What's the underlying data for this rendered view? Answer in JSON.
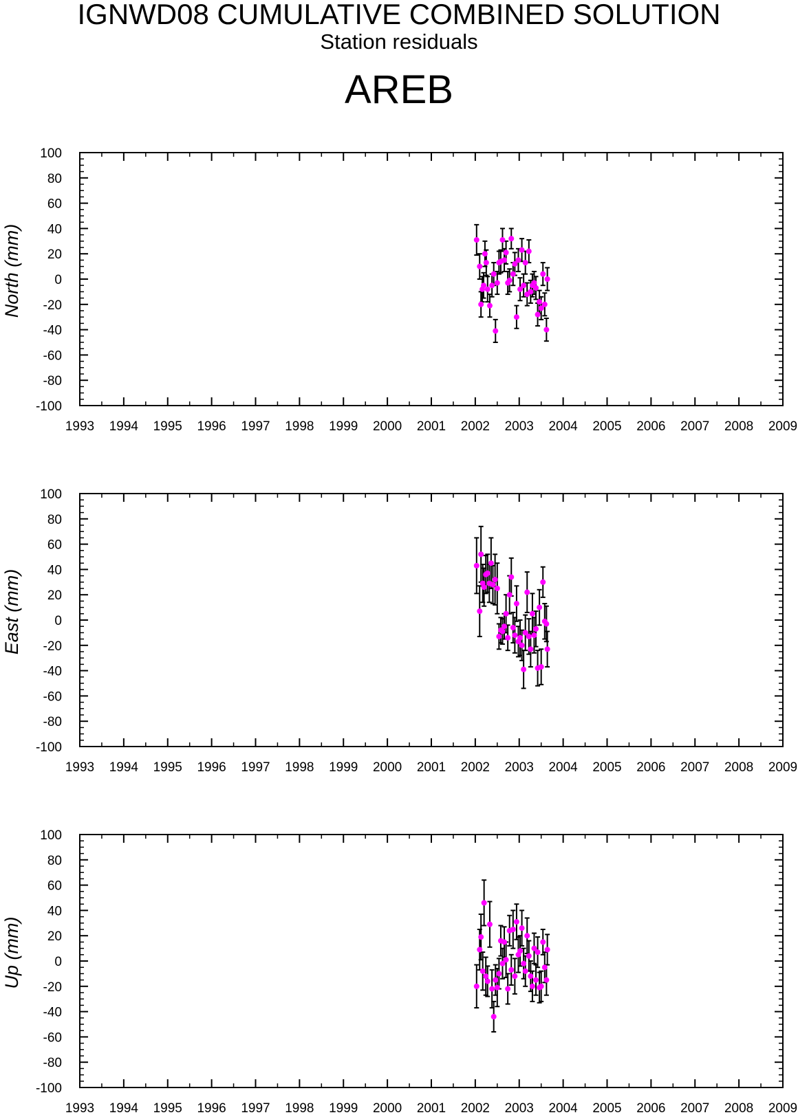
{
  "header": {
    "title": "IGNWD08 CUMULATIVE COMBINED SOLUTION",
    "subtitle": "Station residuals",
    "station": "AREB"
  },
  "colors": {
    "marker": "#ff00ff",
    "errorbar": "#000000",
    "axis": "#000000"
  },
  "chart_data": [
    {
      "type": "scatter",
      "ylabel": "North (mm)",
      "xlim": [
        1993,
        2009
      ],
      "ylim": [
        -100,
        100
      ],
      "x_ticks": [
        "1993",
        "1994",
        "1995",
        "1996",
        "1997",
        "1998",
        "1999",
        "2000",
        "2001",
        "2002",
        "2003",
        "2004",
        "2005",
        "2006",
        "2007",
        "2008",
        "2009"
      ],
      "y_ticks": [
        "100",
        "80",
        "60",
        "40",
        "20",
        "0",
        "-20",
        "-40",
        "-60",
        "-80",
        "-100"
      ],
      "grid": false,
      "error_bars": true,
      "x": [
        2002.03,
        2002.1,
        2002.13,
        2002.16,
        2002.19,
        2002.22,
        2002.25,
        2002.28,
        2002.33,
        2002.38,
        2002.42,
        2002.46,
        2002.5,
        2002.54,
        2002.58,
        2002.62,
        2002.66,
        2002.7,
        2002.74,
        2002.78,
        2002.82,
        2002.86,
        2002.9,
        2002.94,
        2002.98,
        2003.02,
        2003.06,
        2003.1,
        2003.14,
        2003.18,
        2003.22,
        2003.26,
        2003.3,
        2003.34,
        2003.38,
        2003.42,
        2003.46,
        2003.5,
        2003.54,
        2003.58,
        2003.62,
        2003.64
      ],
      "y": [
        31,
        10,
        -20,
        -8,
        -5,
        20,
        13,
        -8,
        -21,
        -5,
        4,
        -41,
        -3,
        13,
        14,
        31,
        15,
        21,
        -3,
        -1,
        32,
        4,
        12,
        -30,
        15,
        -8,
        23,
        -5,
        13,
        -12,
        22,
        -10,
        -5,
        -3,
        -7,
        -28,
        -18,
        -23,
        4,
        -20,
        -40,
        0
      ],
      "err": [
        12,
        10,
        10,
        10,
        10,
        10,
        10,
        10,
        9,
        9,
        9,
        9,
        9,
        9,
        9,
        9,
        9,
        9,
        9,
        9,
        8,
        9,
        9,
        9,
        9,
        9,
        9,
        9,
        9,
        9,
        9,
        9,
        9,
        9,
        9,
        9,
        9,
        9,
        9,
        9,
        9,
        9
      ]
    },
    {
      "type": "scatter",
      "ylabel": "East (mm)",
      "xlim": [
        1993,
        2009
      ],
      "ylim": [
        -100,
        100
      ],
      "x_ticks": [
        "1993",
        "1994",
        "1995",
        "1996",
        "1997",
        "1998",
        "1999",
        "2000",
        "2001",
        "2002",
        "2003",
        "2004",
        "2005",
        "2006",
        "2007",
        "2008",
        "2009"
      ],
      "y_ticks": [
        "100",
        "80",
        "60",
        "40",
        "20",
        "0",
        "-20",
        "-40",
        "-60",
        "-80",
        "-100"
      ],
      "grid": false,
      "error_bars": true,
      "x": [
        2002.03,
        2002.1,
        2002.13,
        2002.17,
        2002.2,
        2002.24,
        2002.28,
        2002.32,
        2002.36,
        2002.4,
        2002.45,
        2002.5,
        2002.54,
        2002.58,
        2002.62,
        2002.66,
        2002.7,
        2002.74,
        2002.78,
        2002.82,
        2002.86,
        2002.9,
        2002.94,
        2002.98,
        2003.02,
        2003.06,
        2003.1,
        2003.14,
        2003.18,
        2003.22,
        2003.26,
        2003.3,
        2003.34,
        2003.38,
        2003.42,
        2003.46,
        2003.5,
        2003.54,
        2003.58,
        2003.62,
        2003.64
      ],
      "y": [
        43,
        7,
        52,
        29,
        26,
        36,
        37,
        29,
        45,
        28,
        32,
        25,
        -13,
        -8,
        -9,
        -5,
        5,
        -14,
        20,
        34,
        -6,
        -12,
        13,
        -17,
        -14,
        -20,
        -39,
        -10,
        22,
        -13,
        -23,
        5,
        -12,
        -7,
        -38,
        10,
        -37,
        30,
        -1,
        -3,
        -23
      ],
      "err": [
        22,
        20,
        22,
        15,
        15,
        15,
        15,
        15,
        20,
        15,
        20,
        20,
        10,
        10,
        10,
        10,
        15,
        10,
        15,
        15,
        12,
        14,
        14,
        12,
        14,
        12,
        15,
        14,
        16,
        14,
        14,
        16,
        14,
        14,
        14,
        14,
        14,
        12,
        14,
        14,
        14
      ]
    },
    {
      "type": "scatter",
      "ylabel": "Up (mm)",
      "xlim": [
        1993,
        2009
      ],
      "ylim": [
        -100,
        100
      ],
      "x_ticks": [
        "1993",
        "1994",
        "1995",
        "1996",
        "1997",
        "1998",
        "1999",
        "2000",
        "2001",
        "2002",
        "2003",
        "2004",
        "2005",
        "2006",
        "2007",
        "2008",
        "2009"
      ],
      "y_ticks": [
        "100",
        "80",
        "60",
        "40",
        "20",
        "0",
        "-20",
        "-40",
        "-60",
        "-80",
        "-100"
      ],
      "grid": false,
      "error_bars": true,
      "x": [
        2002.03,
        2002.1,
        2002.13,
        2002.17,
        2002.2,
        2002.24,
        2002.28,
        2002.33,
        2002.38,
        2002.42,
        2002.46,
        2002.5,
        2002.54,
        2002.58,
        2002.62,
        2002.66,
        2002.7,
        2002.74,
        2002.78,
        2002.82,
        2002.86,
        2002.9,
        2002.94,
        2002.98,
        2003.02,
        2003.06,
        2003.1,
        2003.14,
        2003.18,
        2003.22,
        2003.26,
        2003.3,
        2003.34,
        2003.38,
        2003.42,
        2003.46,
        2003.5,
        2003.54,
        2003.58,
        2003.62,
        2003.64
      ],
      "y": [
        -20,
        9,
        19,
        -8,
        46,
        -12,
        -16,
        29,
        -22,
        -44,
        -15,
        -21,
        -10,
        16,
        -2,
        15,
        1,
        -22,
        24,
        -7,
        25,
        -12,
        31,
        5,
        8,
        26,
        -2,
        -8,
        20,
        4,
        -12,
        -20,
        10,
        -15,
        7,
        -21,
        -20,
        15,
        -5,
        -15,
        9
      ],
      "err": [
        17,
        16,
        18,
        15,
        18,
        15,
        12,
        18,
        15,
        12,
        12,
        15,
        12,
        12,
        12,
        12,
        14,
        12,
        12,
        12,
        15,
        14,
        14,
        14,
        12,
        14,
        12,
        12,
        14,
        12,
        12,
        12,
        12,
        12,
        12,
        12,
        12,
        10,
        12,
        12,
        12
      ]
    }
  ]
}
